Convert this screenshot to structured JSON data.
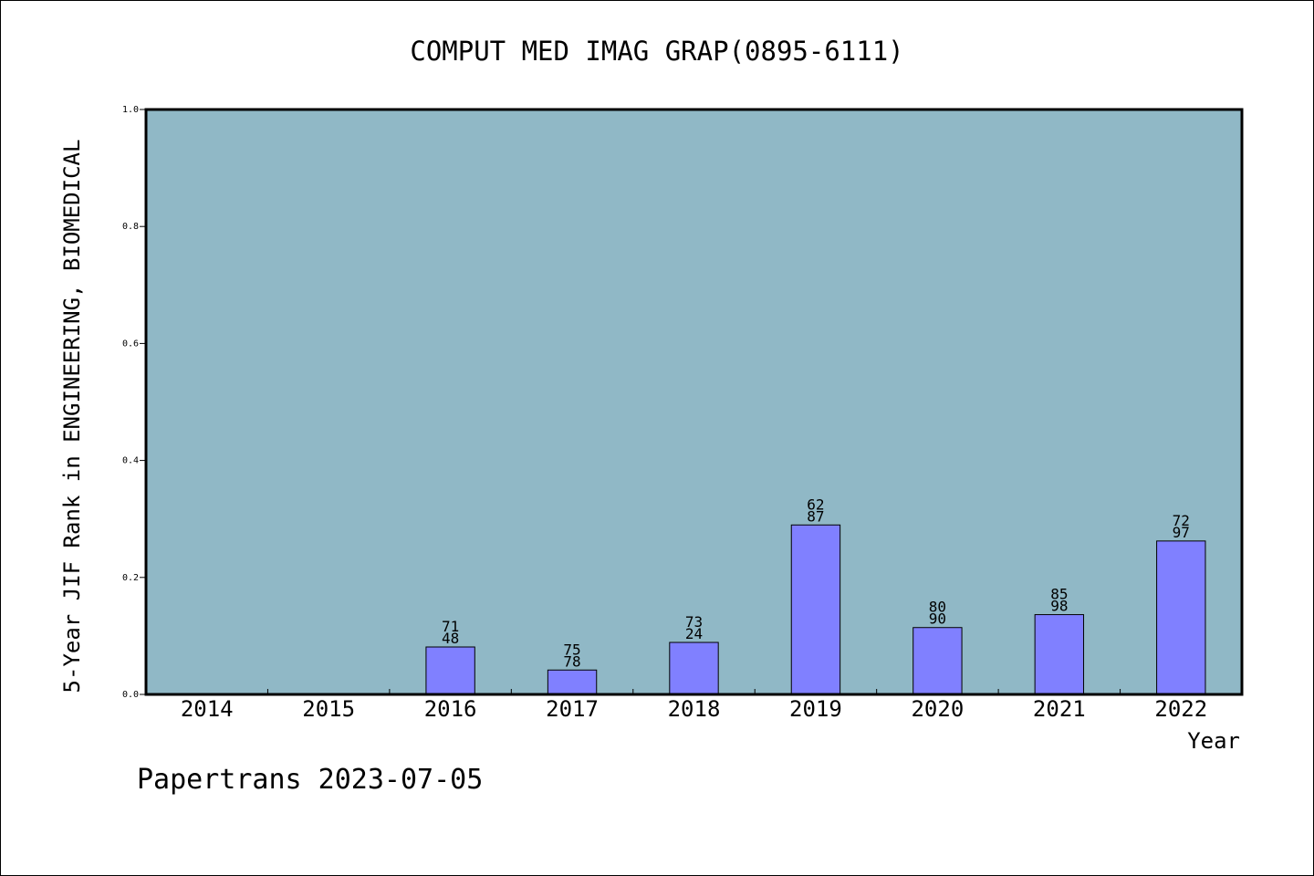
{
  "chart_data": {
    "type": "bar",
    "title": "COMPUT MED IMAG GRAP(0895-6111)",
    "xlabel": "Year",
    "ylabel": "5-Year JIF Rank in ENGINEERING, BIOMEDICAL",
    "ylim": [
      0,
      1.0
    ],
    "yticks": [
      "0.0",
      "0.2",
      "0.4",
      "0.6",
      "0.8",
      "1.0"
    ],
    "categories": [
      "2014",
      "2015",
      "2016",
      "2017",
      "2018",
      "2019",
      "2020",
      "2021",
      "2022"
    ],
    "values": [
      null,
      null,
      0.0811,
      0.0417,
      0.0889,
      0.2897,
      0.1143,
      0.1364,
      0.2623
    ],
    "bar_labels": [
      null,
      null,
      [
        "71",
        "48"
      ],
      [
        "75",
        "78"
      ],
      [
        "73",
        "24"
      ],
      [
        "62",
        "87"
      ],
      [
        "80",
        "90"
      ],
      [
        "85",
        "98"
      ],
      [
        "72",
        "97"
      ]
    ],
    "grid": false,
    "colors": {
      "plot_background": "#90b8c6",
      "bar_fill": "#8080ff",
      "bar_stroke": "#000000",
      "axis": "#000000",
      "text": "#000000"
    }
  },
  "footer": {
    "credit": "Papertrans 2023-07-05"
  }
}
